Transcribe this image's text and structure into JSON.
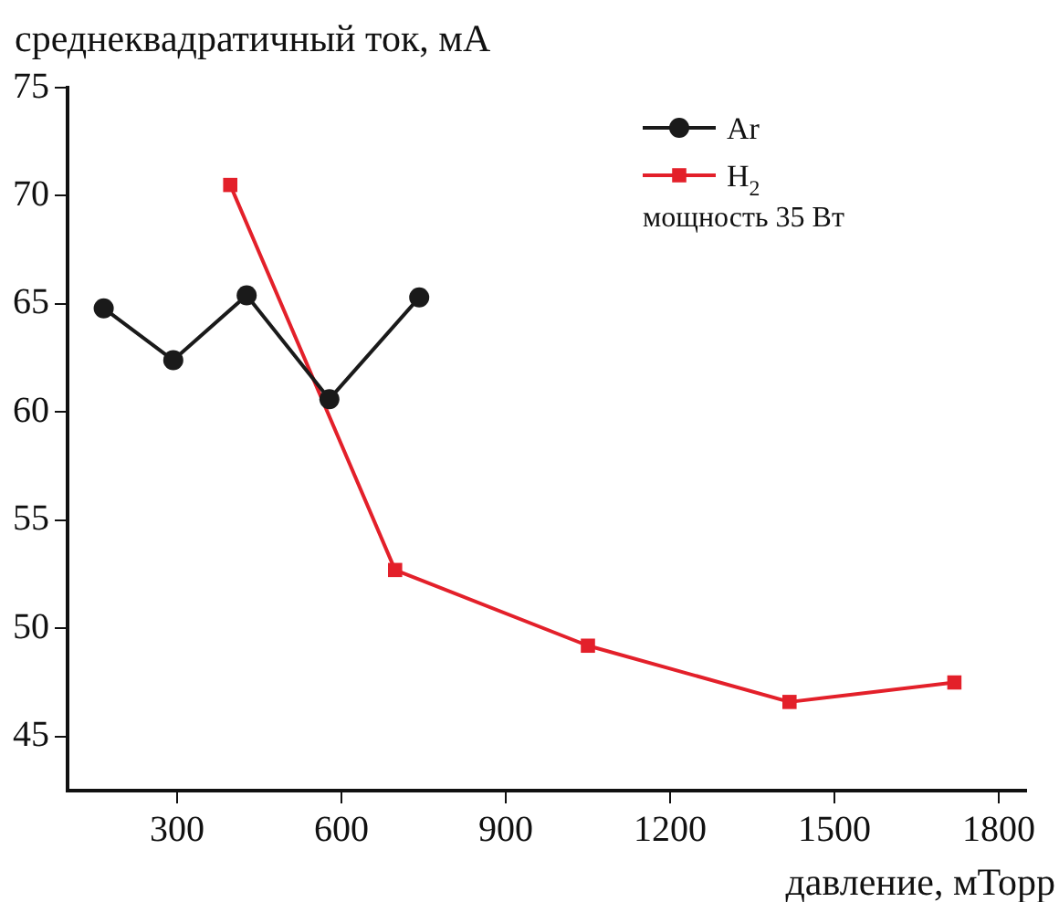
{
  "chart_data": {
    "type": "line",
    "ylabel": "среднеквадратичный ток, мА",
    "xlabel": "давление, мТорр",
    "xlim": [
      100,
      1850
    ],
    "xticks": [
      300,
      600,
      900,
      1200,
      1500,
      1800
    ],
    "ylim": [
      42.5,
      75
    ],
    "yticks": [
      45,
      50,
      55,
      60,
      65,
      70,
      75
    ],
    "grid": false,
    "legend": "top right",
    "line_style": "solid",
    "annotations": [
      "мощность 35 Вт"
    ],
    "series": [
      {
        "name": "Ar",
        "color": "#1a1a1a",
        "marker": "circle",
        "x": [
          166,
          293,
          427,
          578,
          742
        ],
        "values": [
          64.8,
          62.4,
          65.4,
          60.6,
          65.3
        ]
      },
      {
        "name": "H$_{2}$",
        "color": "#e3202a",
        "marker": "square",
        "x": [
          397,
          698,
          1050,
          1418,
          1719
        ],
        "values": [
          70.5,
          52.7,
          49.2,
          46.6,
          47.5
        ]
      }
    ]
  }
}
